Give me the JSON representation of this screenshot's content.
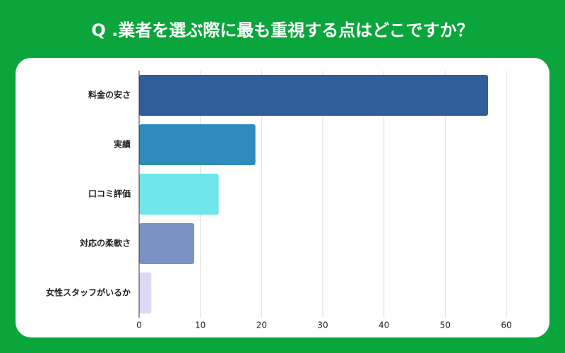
{
  "chart_data": {
    "type": "barh",
    "title": "Q .業者を選ぶ際に最も重視する点はどこですか？",
    "categories": [
      "料金の安さ",
      "実績",
      "口コミ評価",
      "対応の柔軟さ",
      "女性スタッフがいるか"
    ],
    "values": [
      57,
      19,
      13,
      9,
      2
    ],
    "colors": [
      "#2f5e98",
      "#2e8cbd",
      "#6fe6ea",
      "#7b93c4",
      "#ded7f6"
    ],
    "xlim": [
      0,
      60
    ],
    "xticks": [
      0,
      10,
      20,
      30,
      40,
      50,
      60
    ],
    "grid": true
  }
}
